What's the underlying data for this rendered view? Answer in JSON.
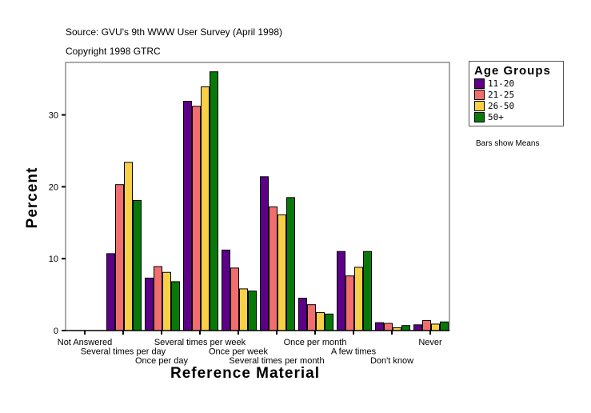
{
  "source": "Source: GVU's 9th WWW User Survey (April 1998)",
  "copyright": "Copyright 1998 GTRC",
  "note": "Bars show Means",
  "chart_data": {
    "type": "bar",
    "xlabel": "Reference Material",
    "ylabel": "Percent",
    "ylim": [
      0,
      37.3
    ],
    "yticks": [
      0,
      10,
      20,
      30
    ],
    "grid": false,
    "legend_title": "Age Groups",
    "legend_placement": "right",
    "categories": [
      "Not Answered",
      "Several times per day",
      "Once per day",
      "Several times per week",
      "Once per week",
      "Several times per month",
      "Once per month",
      "A few times",
      "Don't know",
      "Never"
    ],
    "series": [
      {
        "name": "11-20",
        "color": "#5c0088",
        "values": [
          0,
          10.7,
          7.3,
          31.9,
          11.2,
          21.4,
          4.5,
          11.0,
          1.1,
          0.8
        ]
      },
      {
        "name": "21-25",
        "color": "#f06e6e",
        "values": [
          0,
          20.3,
          8.9,
          31.2,
          8.7,
          17.2,
          3.6,
          7.6,
          1.0,
          1.4
        ]
      },
      {
        "name": "26-50",
        "color": "#f8d048",
        "values": [
          0,
          23.4,
          8.1,
          33.9,
          5.8,
          16.1,
          2.5,
          8.8,
          0.4,
          0.9
        ]
      },
      {
        "name": "50+",
        "color": "#087808",
        "values": [
          0,
          18.1,
          6.8,
          36.0,
          5.5,
          18.5,
          2.3,
          11.0,
          0.7,
          1.2
        ]
      }
    ]
  }
}
